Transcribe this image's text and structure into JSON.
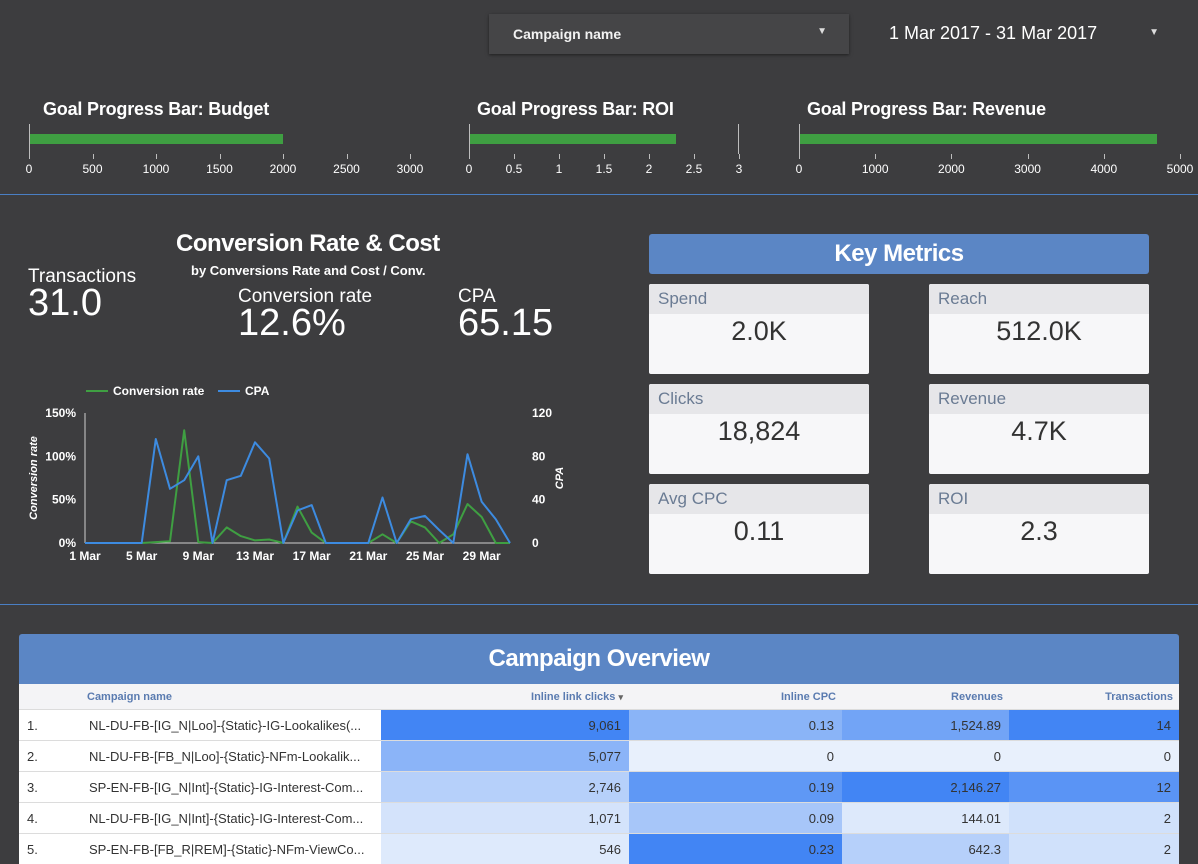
{
  "filters": {
    "campaign_label": "Campaign name",
    "date_range": "1 Mar 2017 - 31 Mar 2017"
  },
  "goal_bars": [
    {
      "title": "Goal Progress Bar: Budget",
      "value": 2000,
      "max": 3000,
      "ticks": [
        "0",
        "500",
        "1000",
        "1500",
        "2000",
        "2500",
        "3000"
      ]
    },
    {
      "title": "Goal Progress Bar: ROI",
      "value": 2.3,
      "max": 3,
      "ticks": [
        "0",
        "0.5",
        "1",
        "1.5",
        "2",
        "2.5",
        "3"
      ]
    },
    {
      "title": "Goal Progress Bar: Revenue",
      "value": 4700,
      "max": 5000,
      "ticks": [
        "0",
        "1000",
        "2000",
        "3000",
        "4000",
        "5000"
      ]
    }
  ],
  "conversion": {
    "title": "Conversion Rate & Cost",
    "subtitle": "by Conversions Rate and Cost / Conv.",
    "transactions_label": "Transactions",
    "transactions_value": "31.0",
    "rate_label": "Conversion rate",
    "rate_value": "12.6%",
    "cpa_label": "CPA",
    "cpa_value": "65.15"
  },
  "chart_data": {
    "type": "line",
    "x": [
      "1 Mar",
      "2 Mar",
      "3 Mar",
      "4 Mar",
      "5 Mar",
      "6 Mar",
      "7 Mar",
      "8 Mar",
      "9 Mar",
      "10 Mar",
      "11 Mar",
      "12 Mar",
      "13 Mar",
      "14 Mar",
      "15 Mar",
      "16 Mar",
      "17 Mar",
      "18 Mar",
      "19 Mar",
      "20 Mar",
      "21 Mar",
      "22 Mar",
      "23 Mar",
      "24 Mar",
      "25 Mar",
      "26 Mar",
      "27 Mar",
      "28 Mar",
      "29 Mar",
      "30 Mar",
      "31 Mar"
    ],
    "x_ticks": [
      "1 Mar",
      "5 Mar",
      "9 Mar",
      "13 Mar",
      "17 Mar",
      "21 Mar",
      "25 Mar",
      "29 Mar"
    ],
    "series": [
      {
        "name": "Conversion rate",
        "axis": "left",
        "color": "#3f9f42",
        "values": [
          0,
          0,
          0,
          0,
          0,
          1,
          2,
          130,
          1,
          0,
          18,
          8,
          3,
          4,
          0,
          42,
          12,
          0,
          0,
          0,
          0,
          10,
          0,
          25,
          18,
          0,
          10,
          45,
          30,
          0,
          0
        ]
      },
      {
        "name": "CPA",
        "axis": "right",
        "color": "#3d8be0",
        "values": [
          0,
          0,
          0,
          0,
          0,
          96,
          50,
          58,
          80,
          0,
          58,
          62,
          93,
          78,
          0,
          30,
          35,
          0,
          0,
          0,
          0,
          42,
          0,
          22,
          25,
          12,
          0,
          82,
          38,
          22,
          0
        ]
      }
    ],
    "ylabel_left": "Conversion rate",
    "ylabel_right": "CPA",
    "yleft_ticks": [
      "150%",
      "100%",
      "50%",
      "0%"
    ],
    "yright_ticks": [
      "120",
      "80",
      "40",
      "0"
    ],
    "yleft_range": [
      0,
      150
    ],
    "yright_range": [
      0,
      120
    ],
    "legend": "top-left"
  },
  "key_metrics": {
    "title": "Key Metrics",
    "items": [
      {
        "label": "Spend",
        "value": "2.0K"
      },
      {
        "label": "Reach",
        "value": "512.0K"
      },
      {
        "label": "Clicks",
        "value": "18,824"
      },
      {
        "label": "Revenue",
        "value": "4.7K"
      },
      {
        "label": "Avg CPC",
        "value": "0.11"
      },
      {
        "label": "ROI",
        "value": "2.3"
      }
    ]
  },
  "overview": {
    "title": "Campaign Overview",
    "columns": [
      "Campaign name",
      "Inline link clicks",
      "Inline CPC",
      "Revenues",
      "Transactions"
    ],
    "sort_indicator": "▾",
    "rows": [
      {
        "idx": "1.",
        "name": "NL-DU-FB-[IG_N|Loo]-{Static}-IG-Lookalikes(...",
        "clicks": "9,061",
        "cpc": "0.13",
        "revenue": "1,524.89",
        "transactions": "14"
      },
      {
        "idx": "2.",
        "name": "NL-DU-FB-[FB_N|Loo]-{Static}-NFm-Lookalik...",
        "clicks": "5,077",
        "cpc": "0",
        "revenue": "0",
        "transactions": "0"
      },
      {
        "idx": "3.",
        "name": "SP-EN-FB-[IG_N|Int]-{Static}-IG-Interest-Com...",
        "clicks": "2,746",
        "cpc": "0.19",
        "revenue": "2,146.27",
        "transactions": "12"
      },
      {
        "idx": "4.",
        "name": "NL-DU-FB-[IG_N|Int]-{Static}-IG-Interest-Com...",
        "clicks": "1,071",
        "cpc": "0.09",
        "revenue": "144.01",
        "transactions": "2"
      },
      {
        "idx": "5.",
        "name": "SP-EN-FB-[FB_R|REM]-{Static}-NFm-ViewCo...",
        "clicks": "546",
        "cpc": "0.23",
        "revenue": "642.3",
        "transactions": "2"
      }
    ]
  }
}
